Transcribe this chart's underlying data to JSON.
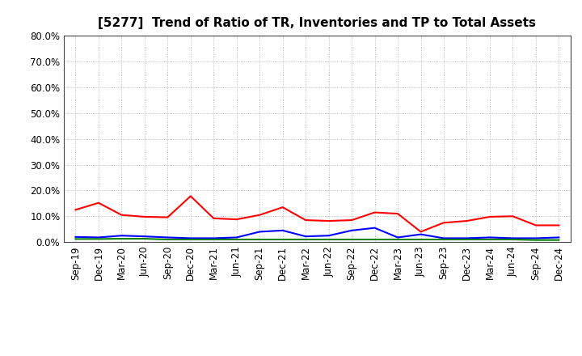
{
  "title": "[5277]  Trend of Ratio of TR, Inventories and TP to Total Assets",
  "x_labels": [
    "Sep-19",
    "Dec-19",
    "Mar-20",
    "Jun-20",
    "Sep-20",
    "Dec-20",
    "Mar-21",
    "Jun-21",
    "Sep-21",
    "Dec-21",
    "Mar-22",
    "Jun-22",
    "Sep-22",
    "Dec-22",
    "Mar-23",
    "Jun-23",
    "Sep-23",
    "Dec-23",
    "Mar-24",
    "Jun-24",
    "Sep-24",
    "Dec-24"
  ],
  "trade_receivables": [
    0.125,
    0.152,
    0.105,
    0.098,
    0.096,
    0.178,
    0.092,
    0.088,
    0.105,
    0.135,
    0.085,
    0.082,
    0.085,
    0.115,
    0.11,
    0.04,
    0.075,
    0.082,
    0.098,
    0.1,
    0.065,
    0.065
  ],
  "inventories": [
    0.02,
    0.018,
    0.025,
    0.022,
    0.018,
    0.015,
    0.015,
    0.018,
    0.04,
    0.045,
    0.022,
    0.025,
    0.045,
    0.055,
    0.018,
    0.03,
    0.015,
    0.015,
    0.018,
    0.015,
    0.015,
    0.018
  ],
  "trade_payables": [
    0.012,
    0.012,
    0.013,
    0.013,
    0.01,
    0.01,
    0.01,
    0.01,
    0.01,
    0.01,
    0.01,
    0.01,
    0.01,
    0.01,
    0.01,
    0.01,
    0.01,
    0.01,
    0.01,
    0.01,
    0.008,
    0.008
  ],
  "tr_color": "#ff0000",
  "inv_color": "#0000ff",
  "tp_color": "#008000",
  "ylim": [
    0.0,
    0.8
  ],
  "yticks": [
    0.0,
    0.1,
    0.2,
    0.3,
    0.4,
    0.5,
    0.6,
    0.7,
    0.8
  ],
  "background_color": "#ffffff",
  "grid_color": "#999999",
  "title_fontsize": 11,
  "tick_fontsize": 8.5,
  "legend_fontsize": 9
}
